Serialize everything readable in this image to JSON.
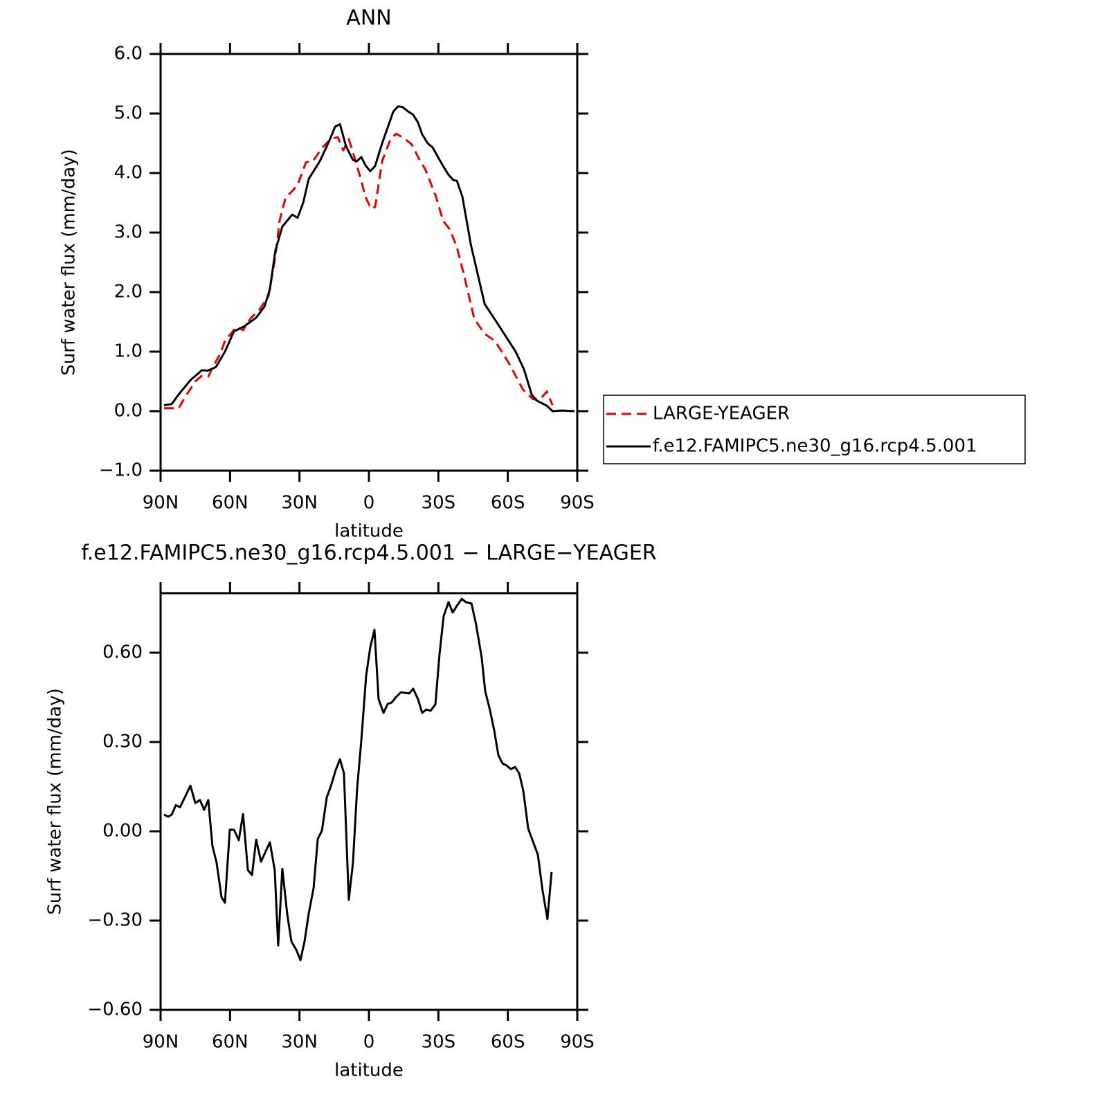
{
  "chart_data": [
    {
      "type": "line",
      "title": "ANN",
      "xlabel": "latitude",
      "ylabel": "Surf water flux (mm/day)",
      "xlim": [
        90,
        -90
      ],
      "xticks": [
        {
          "value": 90,
          "label": "90N"
        },
        {
          "value": 60,
          "label": "60N"
        },
        {
          "value": 30,
          "label": "30N"
        },
        0,
        {
          "value": -30,
          "label": "30S"
        },
        {
          "value": -60,
          "label": "60S"
        },
        {
          "value": -90,
          "label": "90S"
        }
      ],
      "ylim": [
        -1,
        6
      ],
      "yticks": [
        {
          "value": -1,
          "label": "−1.0"
        },
        {
          "value": 0,
          "label": "0.0"
        },
        {
          "value": 1,
          "label": "1.0"
        },
        {
          "value": 2,
          "label": "2.0"
        },
        {
          "value": 3,
          "label": "3.0"
        },
        {
          "value": 4,
          "label": "4.0"
        },
        {
          "value": 5,
          "label": "5.0"
        },
        {
          "value": 6,
          "label": "6.0"
        }
      ],
      "legend": "right",
      "series": [
        {
          "name": "LARGE-YEAGER",
          "color": "#e00000",
          "linestyle": "dashed",
          "x": [
            88.5,
            82.2,
            79.2,
            75,
            72.1,
            69.4,
            67.6,
            64.3,
            62.2,
            60.1,
            57.1,
            54.4,
            51.1,
            47.2,
            43.4,
            40.4,
            38.6,
            35.9,
            33.8,
            30.8,
            27.2,
            24.2,
            20.3,
            16.4,
            13.4,
            11.1,
            8.7,
            6.9,
            3.9,
            1.5,
            -0.9,
            -2.7,
            -5.7,
            -9.3,
            -11.7,
            -14.7,
            -18.5,
            -21.5,
            -24.5,
            -29,
            -32,
            -35,
            -38,
            -41,
            -45.5,
            -50,
            -54.4,
            -57.4,
            -61.3,
            -66.4,
            -70.9,
            -73.9,
            -76.9,
            -79.3
          ],
          "values": [
            0.05,
            0.05,
            0.25,
            0.5,
            0.6,
            0.58,
            0.73,
            0.96,
            1.18,
            1.28,
            1.42,
            1.36,
            1.56,
            1.71,
            1.93,
            2.6,
            3.2,
            3.6,
            3.67,
            3.8,
            4.18,
            4.2,
            4.42,
            4.58,
            4.6,
            4.38,
            4.57,
            4.35,
            3.95,
            3.6,
            3.4,
            3.43,
            4.2,
            4.57,
            4.66,
            4.6,
            4.48,
            4.25,
            4.05,
            3.6,
            3.2,
            3.05,
            2.75,
            2.3,
            1.55,
            1.3,
            1.18,
            1.0,
            0.75,
            0.37,
            0.2,
            0.2,
            0.33,
            0.1
          ]
        },
        {
          "name": "f.e12.FAMIPC5.ne30_g16.rcp4.5.001",
          "color": "#000000",
          "linestyle": "solid",
          "x": [
            88.5,
            85.2,
            82.2,
            77.1,
            72.1,
            69.7,
            66.1,
            62.2,
            58.3,
            54.1,
            48.7,
            45.1,
            42.8,
            40.4,
            37.4,
            33.2,
            30.8,
            28.4,
            26,
            21.2,
            17,
            14.6,
            12.5,
            9.9,
            6.9,
            5.1,
            3.3,
            1.5,
            -0.6,
            -2.7,
            -5.7,
            -10.5,
            -12.6,
            -14.4,
            -17.1,
            -19.1,
            -21.2,
            -23,
            -25.4,
            -27.5,
            -32,
            -34.4,
            -36.5,
            -38,
            -40.4,
            -44,
            -50,
            -55.9,
            -63.4,
            -67,
            -70.3,
            -72.4,
            -76.9,
            -79.3,
            -83.4,
            -88.8
          ],
          "values": [
            0.1,
            0.12,
            0.28,
            0.52,
            0.69,
            0.68,
            0.74,
            1.0,
            1.34,
            1.42,
            1.57,
            1.76,
            2.05,
            2.7,
            3.1,
            3.3,
            3.25,
            3.5,
            3.9,
            4.2,
            4.55,
            4.78,
            4.82,
            4.45,
            4.22,
            4.2,
            4.27,
            4.13,
            4.03,
            4.12,
            4.5,
            5.03,
            5.12,
            5.11,
            5.03,
            4.98,
            4.85,
            4.65,
            4.5,
            4.43,
            4.12,
            3.97,
            3.88,
            3.87,
            3.6,
            2.8,
            1.8,
            1.45,
            1.0,
            0.7,
            0.28,
            0.18,
            0.09,
            0.0,
            0.01,
            0.0
          ]
        }
      ]
    },
    {
      "type": "line",
      "title": "f.e12.FAMIPC5.ne30_g16.rcp4.5.001 − LARGE−YEAGER",
      "xlabel": "latitude",
      "ylabel": "Surf water flux (mm/day)",
      "xlim": [
        90,
        -90
      ],
      "xticks": [
        {
          "value": 90,
          "label": "90N"
        },
        {
          "value": 60,
          "label": "60N"
        },
        {
          "value": 30,
          "label": "30N"
        },
        0,
        {
          "value": -30,
          "label": "30S"
        },
        {
          "value": -60,
          "label": "60S"
        },
        {
          "value": -90,
          "label": "90S"
        }
      ],
      "ylim": [
        -0.6,
        0.8
      ],
      "yticks": [
        {
          "value": -0.6,
          "label": "−0.60"
        },
        {
          "value": -0.3,
          "label": "−0.30"
        },
        {
          "value": 0,
          "label": "0.00"
        },
        {
          "value": 0.3,
          "label": "0.30"
        },
        {
          "value": 0.6,
          "label": "0.60"
        }
      ],
      "color": "#000000",
      "x": [
        88.5,
        86.7,
        85.2,
        83.4,
        81.6,
        77.1,
        75,
        73,
        71.2,
        69.4,
        67.6,
        65.8,
        63.7,
        62.2,
        60.1,
        58.3,
        56.2,
        54.4,
        52.3,
        50.5,
        48.7,
        46.6,
        42.8,
        40.7,
        39.2,
        37.4,
        35.3,
        33.5,
        31.4,
        29.6,
        27.8,
        26,
        23.9,
        22.1,
        20.3,
        18.2,
        16.4,
        14.3,
        12.5,
        10.8,
        8.7,
        6.9,
        5.1,
        3.3,
        1.2,
        -0.6,
        -2.4,
        -4.2,
        -6.3,
        -8.1,
        -9.9,
        -11.7,
        -13.8,
        -17.4,
        -19.1,
        -21.2,
        -23,
        -24.8,
        -26.6,
        -28.7,
        -30.5,
        -32.3,
        -34.4,
        -36.2,
        -38,
        -40.1,
        -41.9,
        -44.3,
        -46.3,
        -48.7,
        -50.2,
        -52.3,
        -54.1,
        -55.9,
        -57.7,
        -59.5,
        -61.3,
        -63.1,
        -64.9,
        -66.7,
        -68.8,
        -70.9,
        -73,
        -75,
        -77.1,
        -78.9
      ],
      "values": [
        0.056,
        0.049,
        0.056,
        0.088,
        0.081,
        0.153,
        0.095,
        0.105,
        0.072,
        0.105,
        -0.049,
        -0.105,
        -0.221,
        -0.24,
        0.005,
        0.005,
        -0.03,
        0.058,
        -0.13,
        -0.147,
        -0.028,
        -0.102,
        -0.037,
        -0.13,
        -0.384,
        -0.126,
        -0.277,
        -0.37,
        -0.398,
        -0.433,
        -0.37,
        -0.277,
        -0.19,
        -0.026,
        0.002,
        0.114,
        0.153,
        0.207,
        0.242,
        0.195,
        -0.23,
        -0.107,
        0.142,
        0.305,
        0.523,
        0.619,
        0.677,
        0.444,
        0.398,
        0.428,
        0.433,
        0.451,
        0.467,
        0.463,
        0.479,
        0.444,
        0.398,
        0.409,
        0.405,
        0.426,
        0.595,
        0.723,
        0.77,
        0.735,
        0.758,
        0.781,
        0.77,
        0.765,
        0.695,
        0.584,
        0.472,
        0.407,
        0.34,
        0.256,
        0.228,
        0.221,
        0.209,
        0.216,
        0.195,
        0.135,
        0.009,
        -0.035,
        -0.079,
        -0.198,
        -0.295,
        -0.137
      ]
    }
  ]
}
